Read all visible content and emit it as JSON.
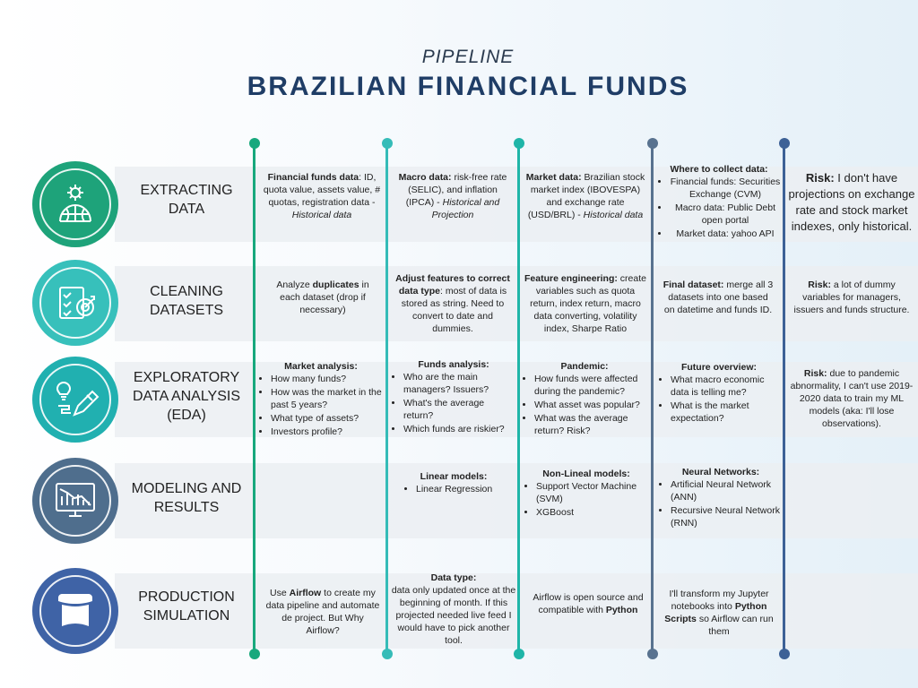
{
  "header": {
    "subtitle": "PIPELINE",
    "title": "BRAZILIAN FINANCIAL FUNDS"
  },
  "colors": {
    "stage1": "#1ea37a",
    "stage2": "#37c0bb",
    "stage3": "#21b0b0",
    "stage4": "#4f6e8d",
    "stage5": "#3f63a6",
    "line1": "#18a87d",
    "line2": "#35bcb8",
    "line3": "#1fb5a8",
    "line4": "#58728f",
    "line5": "#3d6196"
  },
  "stages": [
    {
      "label": "EXTRACTING DATA",
      "icon": "globe-gear-icon"
    },
    {
      "label": "CLEANING DATASETS",
      "icon": "checklist-target-icon"
    },
    {
      "label": "EXPLORATORY DATA ANALYSIS (EDA)",
      "icon": "lightbulb-pencil-icon"
    },
    {
      "label": "MODELING AND RESULTS",
      "icon": "chart-monitor-icon"
    },
    {
      "label": "PRODUCTION SIMULATION",
      "icon": "banner-icon"
    }
  ],
  "cells": {
    "r1": {
      "c1": {
        "bold": "Financial funds data",
        "text": ": ID, quota value, assets value, # quotas, registration data - ",
        "italic": "Historical data"
      },
      "c2": {
        "bold": "Macro data:",
        "text": " risk-free rate (SELIC), and inflation (IPCA) - ",
        "italic": "Historical and Projection"
      },
      "c3": {
        "bold": "Market data:",
        "text": " Brazilian stock market index (IBOVESPA) and exchange rate (USD/BRL) - ",
        "italic": "Historical  data"
      },
      "c4": {
        "heading": "Where to collect data:",
        "items": [
          "Financial funds: Securities Exchange (CVM)",
          "Macro data: Public Debt open portal",
          "Market data: yahoo API"
        ]
      },
      "c5": {
        "bold": "Risk:",
        "text": " I don't have projections on exchange rate and stock market indexes, only historical."
      }
    },
    "r2": {
      "c1": {
        "pre": "Analyze ",
        "bold": "duplicates",
        "text": " in each dataset (drop if necessary)"
      },
      "c2": {
        "bold": "Adjust features to correct data type",
        "text": ": most of data is stored as string. Need to convert to date and dummies."
      },
      "c3": {
        "bold": "Feature engineering:",
        "text": " create variables such as quota return, index return, macro data converting, volatility index, Sharpe Ratio"
      },
      "c4": {
        "bold": "Final dataset:",
        "text": " merge all 3 datasets into one based on datetime and funds ID."
      },
      "c5": {
        "bold": "Risk:",
        "text": " a lot of dummy variables for managers, issuers and funds structure."
      }
    },
    "r3": {
      "c1": {
        "heading": "Market analysis:",
        "items": [
          "How many funds?",
          "How was the market in the past 5 years?",
          "What type of assets?",
          "Investors profile?"
        ]
      },
      "c2": {
        "heading": "Funds analysis:",
        "items": [
          "Who are the main managers? Issuers?",
          "What's the average return?",
          "Which funds are riskier?"
        ]
      },
      "c3": {
        "heading": "Pandemic:",
        "items": [
          "How funds were affected during the pandemic?",
          "What asset was popular?",
          "What was the average return? Risk?"
        ]
      },
      "c4": {
        "heading": "Future overview:",
        "items": [
          "What macro economic data is telling me?",
          "What is the market expectation?"
        ]
      },
      "c5": {
        "bold": "Risk:",
        "text": " due to pandemic abnormality, I can't use 2019-2020 data to train my ML models (aka: I'll lose observations)."
      }
    },
    "r4": {
      "c2": {
        "heading": "Linear models:",
        "items": [
          "Linear Regression"
        ]
      },
      "c3": {
        "heading": "Non-Lineal models:",
        "items": [
          "Support Vector Machine (SVM)",
          "XGBoost"
        ]
      },
      "c4": {
        "heading": "Neural Networks:",
        "items": [
          "Artificial Neural Network (ANN)",
          "Recursive Neural Network (RNN)"
        ]
      }
    },
    "r5": {
      "c1": {
        "pre": "Use ",
        "bold": "Airflow",
        "text": " to create my data pipeline and automate de project. But Why Airflow?"
      },
      "c2": {
        "heading": "Data type:",
        "text": "data only updated once at the beginning of month. If this projected needed live feed I would have to pick another tool."
      },
      "c3": {
        "text": "Airflow is open source and compatible with ",
        "bold2": "Python"
      },
      "c4": {
        "text": "I'll transform my Jupyter notebooks into ",
        "bold2": "Python Scripts",
        "text2": " so Airflow can run them"
      }
    }
  }
}
